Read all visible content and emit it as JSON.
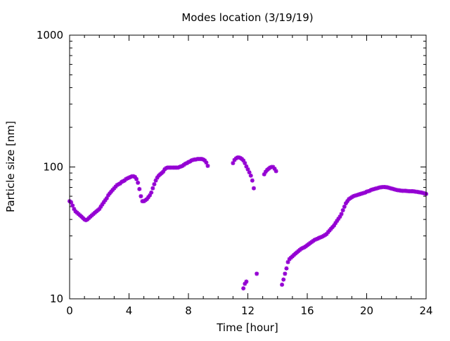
{
  "chart_data": {
    "type": "scatter",
    "title": "Modes location (3/19/19)",
    "xlabel": "Time [hour]",
    "ylabel": "Particle size [nm]",
    "xlim": [
      0,
      24
    ],
    "ylim": [
      10,
      1000
    ],
    "yscale": "log",
    "x_ticks": [
      0,
      4,
      8,
      12,
      16,
      20,
      24
    ],
    "x_tick_labels": [
      "0",
      "4",
      "8",
      "12",
      "16",
      "20",
      "24"
    ],
    "y_ticks": [
      10,
      100,
      1000
    ],
    "y_tick_labels": [
      "10",
      "100",
      "1000"
    ],
    "grid": false,
    "legend": "none",
    "marker_color": "#9400d3",
    "series": [
      {
        "points": [
          [
            0.0,
            55
          ],
          [
            0.1,
            54
          ],
          [
            0.2,
            51
          ],
          [
            0.3,
            48
          ],
          [
            0.4,
            46
          ],
          [
            0.5,
            45
          ],
          [
            0.6,
            44
          ],
          [
            0.7,
            43
          ],
          [
            0.8,
            42
          ],
          [
            0.9,
            41
          ],
          [
            1.0,
            40
          ],
          [
            1.1,
            39.5
          ],
          [
            1.2,
            40
          ],
          [
            1.3,
            41
          ],
          [
            1.4,
            42
          ],
          [
            1.5,
            43
          ],
          [
            1.6,
            44
          ],
          [
            1.7,
            45
          ],
          [
            1.8,
            46
          ],
          [
            1.9,
            47
          ],
          [
            2.0,
            48
          ],
          [
            2.1,
            50
          ],
          [
            2.2,
            52
          ],
          [
            2.3,
            54
          ],
          [
            2.4,
            56
          ],
          [
            2.5,
            58
          ],
          [
            2.6,
            61
          ],
          [
            2.7,
            63
          ],
          [
            2.8,
            65
          ],
          [
            2.9,
            67
          ],
          [
            3.0,
            69
          ],
          [
            3.1,
            71
          ],
          [
            3.2,
            73
          ],
          [
            3.3,
            74
          ],
          [
            3.4,
            75
          ],
          [
            3.5,
            77
          ],
          [
            3.6,
            78
          ],
          [
            3.7,
            79
          ],
          [
            3.8,
            81
          ],
          [
            3.9,
            82
          ],
          [
            4.0,
            83
          ],
          [
            4.1,
            84
          ],
          [
            4.2,
            85
          ],
          [
            4.3,
            85
          ],
          [
            4.4,
            84
          ],
          [
            4.5,
            81
          ],
          [
            4.6,
            76
          ],
          [
            4.7,
            68
          ],
          [
            4.8,
            60
          ],
          [
            4.9,
            55
          ],
          [
            5.0,
            55
          ],
          [
            5.1,
            56
          ],
          [
            5.2,
            57
          ],
          [
            5.3,
            59
          ],
          [
            5.4,
            61
          ],
          [
            5.5,
            64
          ],
          [
            5.6,
            69
          ],
          [
            5.7,
            74
          ],
          [
            5.8,
            79
          ],
          [
            5.9,
            83
          ],
          [
            6.0,
            86
          ],
          [
            6.1,
            88
          ],
          [
            6.2,
            90
          ],
          [
            6.3,
            92
          ],
          [
            6.4,
            96
          ],
          [
            6.5,
            98
          ],
          [
            6.6,
            99
          ],
          [
            6.7,
            99
          ],
          [
            6.8,
            99
          ],
          [
            6.9,
            99
          ],
          [
            7.0,
            99
          ],
          [
            7.1,
            99
          ],
          [
            7.2,
            99
          ],
          [
            7.3,
            99
          ],
          [
            7.4,
            100
          ],
          [
            7.5,
            101
          ],
          [
            7.6,
            102
          ],
          [
            7.7,
            104
          ],
          [
            7.8,
            106
          ],
          [
            7.9,
            107
          ],
          [
            8.0,
            109
          ],
          [
            8.1,
            110
          ],
          [
            8.2,
            112
          ],
          [
            8.3,
            113
          ],
          [
            8.4,
            114
          ],
          [
            8.5,
            114
          ],
          [
            8.6,
            115
          ],
          [
            8.7,
            115
          ],
          [
            8.8,
            115
          ],
          [
            8.9,
            115
          ],
          [
            9.0,
            114
          ],
          [
            9.1,
            112
          ],
          [
            9.2,
            108
          ],
          [
            9.3,
            102
          ],
          [
            11.0,
            107
          ],
          [
            11.1,
            113
          ],
          [
            11.2,
            116
          ],
          [
            11.3,
            118
          ],
          [
            11.4,
            118
          ],
          [
            11.5,
            117
          ],
          [
            11.6,
            115
          ],
          [
            11.7,
            112
          ],
          [
            11.8,
            107
          ],
          [
            11.9,
            101
          ],
          [
            12.0,
            96
          ],
          [
            12.1,
            91
          ],
          [
            12.2,
            86
          ],
          [
            12.3,
            79
          ],
          [
            12.4,
            69
          ],
          [
            11.7,
            12
          ],
          [
            11.8,
            13
          ],
          [
            11.9,
            13.5
          ],
          [
            12.6,
            15.5
          ],
          [
            13.1,
            88
          ],
          [
            13.2,
            92
          ],
          [
            13.3,
            95
          ],
          [
            13.4,
            97
          ],
          [
            13.5,
            99
          ],
          [
            13.6,
            100
          ],
          [
            13.7,
            100
          ],
          [
            13.8,
            97
          ],
          [
            13.9,
            93
          ],
          [
            14.3,
            12.8
          ],
          [
            14.4,
            14
          ],
          [
            14.5,
            15.5
          ],
          [
            14.6,
            17
          ],
          [
            14.7,
            19
          ],
          [
            14.8,
            20
          ],
          [
            14.9,
            20.5
          ],
          [
            15.0,
            21
          ],
          [
            15.1,
            21.5
          ],
          [
            15.2,
            22
          ],
          [
            15.3,
            22.5
          ],
          [
            15.4,
            23
          ],
          [
            15.5,
            23.5
          ],
          [
            15.6,
            24
          ],
          [
            15.7,
            24.3
          ],
          [
            15.8,
            24.6
          ],
          [
            15.9,
            25
          ],
          [
            16.0,
            25.5
          ],
          [
            16.1,
            26
          ],
          [
            16.2,
            26.5
          ],
          [
            16.3,
            27
          ],
          [
            16.4,
            27.5
          ],
          [
            16.5,
            28
          ],
          [
            16.6,
            28.3
          ],
          [
            16.7,
            28.6
          ],
          [
            16.8,
            29
          ],
          [
            16.9,
            29.3
          ],
          [
            17.0,
            29.6
          ],
          [
            17.1,
            30
          ],
          [
            17.2,
            30.5
          ],
          [
            17.3,
            31
          ],
          [
            17.4,
            32
          ],
          [
            17.5,
            33
          ],
          [
            17.6,
            34
          ],
          [
            17.7,
            35
          ],
          [
            17.8,
            36
          ],
          [
            17.9,
            37.5
          ],
          [
            18.0,
            39
          ],
          [
            18.1,
            40.5
          ],
          [
            18.2,
            42
          ],
          [
            18.3,
            44
          ],
          [
            18.4,
            47
          ],
          [
            18.5,
            50
          ],
          [
            18.6,
            53
          ],
          [
            18.7,
            55
          ],
          [
            18.8,
            57
          ],
          [
            18.9,
            58
          ],
          [
            19.0,
            59
          ],
          [
            19.1,
            60
          ],
          [
            19.2,
            60.5
          ],
          [
            19.3,
            61
          ],
          [
            19.4,
            61.5
          ],
          [
            19.5,
            62
          ],
          [
            19.6,
            62.5
          ],
          [
            19.7,
            63
          ],
          [
            19.8,
            63.5
          ],
          [
            19.9,
            64
          ],
          [
            20.0,
            65
          ],
          [
            20.1,
            65.5
          ],
          [
            20.2,
            66
          ],
          [
            20.3,
            67
          ],
          [
            20.4,
            67.5
          ],
          [
            20.5,
            68
          ],
          [
            20.6,
            68.5
          ],
          [
            20.7,
            69
          ],
          [
            20.8,
            69.5
          ],
          [
            20.9,
            70
          ],
          [
            21.0,
            70.3
          ],
          [
            21.1,
            70.5
          ],
          [
            21.2,
            70.5
          ],
          [
            21.3,
            70.3
          ],
          [
            21.4,
            70
          ],
          [
            21.5,
            69.5
          ],
          [
            21.6,
            69
          ],
          [
            21.7,
            68.5
          ],
          [
            21.8,
            68
          ],
          [
            21.9,
            67.5
          ],
          [
            22.0,
            67
          ],
          [
            22.1,
            66.7
          ],
          [
            22.2,
            66.5
          ],
          [
            22.3,
            66.2
          ],
          [
            22.4,
            66
          ],
          [
            22.5,
            66
          ],
          [
            22.6,
            66
          ],
          [
            22.7,
            65.8
          ],
          [
            22.8,
            65.6
          ],
          [
            22.9,
            65.5
          ],
          [
            23.0,
            65.5
          ],
          [
            23.1,
            65.5
          ],
          [
            23.2,
            65.3
          ],
          [
            23.3,
            65
          ],
          [
            23.4,
            64.8
          ],
          [
            23.5,
            64.5
          ],
          [
            23.6,
            64.2
          ],
          [
            23.7,
            64
          ],
          [
            23.8,
            63.5
          ],
          [
            23.9,
            63
          ],
          [
            24.0,
            62.5
          ]
        ]
      }
    ]
  }
}
